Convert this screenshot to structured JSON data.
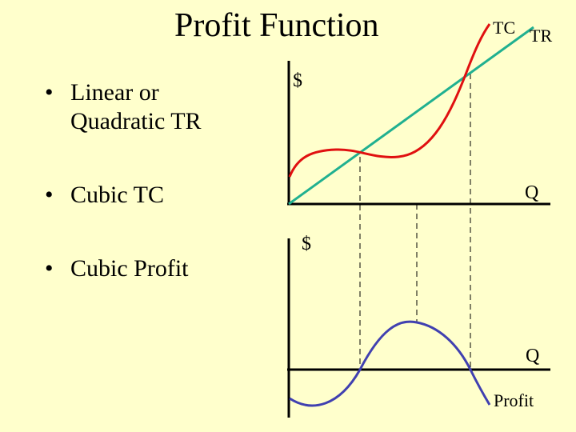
{
  "title": "Profit Function",
  "bullets": [
    {
      "bullet": "•",
      "lines": [
        "Linear or",
        "Quadratic TR"
      ]
    },
    {
      "bullet": "•",
      "lines": [
        "Cubic TC"
      ]
    },
    {
      "bullet": "•",
      "lines": [
        "Cubic Profit"
      ]
    }
  ],
  "top_graph": {
    "y_label": "$",
    "x_label": "Q",
    "curve_labels": {
      "tc": "TC",
      "tr": "TR"
    }
  },
  "bottom_graph": {
    "y_label": "$",
    "x_label": "Q",
    "curve_label": "Profit"
  },
  "colors": {
    "background": "#ffffcc",
    "tc": "#e01010",
    "tr": "#20b090",
    "profit": "#4040b0",
    "axis": "#000000"
  }
}
